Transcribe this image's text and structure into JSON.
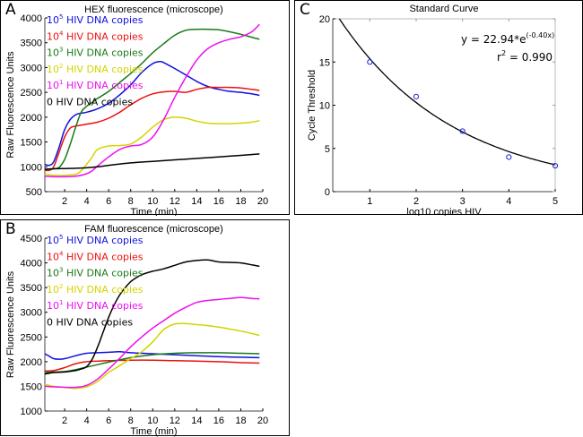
{
  "chart_data": [
    {
      "id": "A",
      "panel_label": "A",
      "type": "line",
      "title": "HEX fluorescence (microscope)",
      "xlabel": "Time (min)",
      "ylabel": "Raw Fluorescence Units",
      "xlim": [
        0.2,
        20
      ],
      "ylim": [
        500,
        4000
      ],
      "xticks": [
        2,
        4,
        6,
        8,
        10,
        12,
        14,
        16,
        18,
        20
      ],
      "yticks": [
        500,
        1000,
        1500,
        2000,
        2500,
        3000,
        3500,
        4000
      ],
      "legend_position": "top-left",
      "grid": false,
      "series": [
        {
          "name": "10^5 HIV DNA copies",
          "label_base": "10",
          "label_exp": "5",
          "label_rest": " HIV DNA copies",
          "color": "#1010e0",
          "x": [
            0.2,
            0.6,
            1,
            1.5,
            2,
            2.5,
            3,
            3.5,
            4,
            5,
            6,
            7,
            8,
            9,
            10,
            10.6,
            11,
            12,
            13,
            14,
            15,
            16,
            17,
            18,
            19,
            19.7
          ],
          "y": [
            1050,
            1030,
            1100,
            1400,
            1750,
            1950,
            2050,
            2080,
            2100,
            2170,
            2280,
            2450,
            2650,
            2900,
            3080,
            3120,
            3100,
            2980,
            2850,
            2720,
            2620,
            2560,
            2520,
            2500,
            2470,
            2440
          ]
        },
        {
          "name": "10^4 HIV DNA copies",
          "label_base": "10",
          "label_exp": "4",
          "label_rest": " HIV DNA copies",
          "color": "#ee1010",
          "x": [
            0.2,
            0.6,
            1,
            1.5,
            2,
            2.5,
            3,
            3.5,
            4,
            5,
            6,
            7,
            8,
            9,
            10,
            11,
            12,
            13,
            14,
            15,
            16,
            17,
            18,
            19,
            19.7
          ],
          "y": [
            930,
            930,
            1000,
            1300,
            1600,
            1780,
            1820,
            1840,
            1860,
            1900,
            1980,
            2100,
            2250,
            2380,
            2470,
            2510,
            2520,
            2500,
            2560,
            2600,
            2600,
            2600,
            2590,
            2560,
            2540
          ]
        },
        {
          "name": "10^3 HIV DNA copies",
          "label_base": "10",
          "label_exp": "3",
          "label_rest": " HIV DNA copies",
          "color": "#1a7a1a",
          "x": [
            0.2,
            0.6,
            1,
            1.5,
            2,
            2.5,
            3,
            3.5,
            4,
            4.5,
            5,
            6,
            7,
            8,
            9,
            10,
            11,
            12,
            13,
            14,
            15,
            16,
            17,
            18,
            19,
            19.7
          ],
          "y": [
            960,
            950,
            960,
            990,
            1150,
            1450,
            1800,
            2100,
            2220,
            2300,
            2380,
            2520,
            2700,
            2880,
            3080,
            3300,
            3480,
            3650,
            3750,
            3770,
            3770,
            3760,
            3720,
            3670,
            3610,
            3570
          ]
        },
        {
          "name": "10^2 HIV DNA copies",
          "label_base": "10",
          "label_exp": "2",
          "label_rest": " HIV DNA copies",
          "color": "#d4d400",
          "x": [
            0.2,
            1,
            2,
            3,
            3.5,
            4,
            4.5,
            5,
            6,
            7,
            8,
            9,
            10,
            11,
            12,
            13,
            14,
            15,
            16,
            17,
            18,
            19,
            19.7
          ],
          "y": [
            850,
            830,
            830,
            850,
            920,
            1050,
            1200,
            1350,
            1420,
            1430,
            1460,
            1600,
            1800,
            1950,
            2000,
            1980,
            1920,
            1880,
            1870,
            1870,
            1880,
            1900,
            1930
          ]
        },
        {
          "name": "10^1 HIV DNA copies",
          "label_base": "10",
          "label_exp": "1",
          "label_rest": " HIV DNA copies",
          "color": "#ee10ee",
          "x": [
            0.2,
            1,
            2,
            3,
            4,
            4.5,
            5,
            6,
            7,
            8,
            9,
            10,
            11,
            12,
            13,
            14,
            15,
            16,
            17,
            18,
            19,
            19.7
          ],
          "y": [
            810,
            800,
            800,
            810,
            860,
            920,
            1020,
            1200,
            1350,
            1420,
            1450,
            1600,
            1950,
            2400,
            2800,
            3150,
            3380,
            3500,
            3570,
            3620,
            3720,
            3870
          ]
        },
        {
          "name": "0 HIV DNA copies",
          "label_base": "0",
          "label_exp": "",
          "label_rest": " HIV DNA copies",
          "color": "#000000",
          "x": [
            0.2,
            1,
            2,
            3,
            4,
            5,
            6,
            8,
            10,
            12,
            14,
            16,
            18,
            19.7
          ],
          "y": [
            950,
            960,
            965,
            970,
            980,
            1000,
            1030,
            1080,
            1110,
            1140,
            1170,
            1200,
            1230,
            1260
          ]
        }
      ]
    },
    {
      "id": "B",
      "panel_label": "B",
      "type": "line",
      "title": "FAM fluorescence (microscope)",
      "xlabel": "Time (min)",
      "ylabel": "Raw Fluorescence Units",
      "xlim": [
        0.2,
        20
      ],
      "ylim": [
        1000,
        4500
      ],
      "xticks": [
        2,
        4,
        6,
        8,
        10,
        12,
        14,
        16,
        18,
        20
      ],
      "yticks": [
        1000,
        1500,
        2000,
        2500,
        3000,
        3500,
        4000,
        4500
      ],
      "legend_position": "top-left",
      "grid": false,
      "series": [
        {
          "name": "10^5 HIV DNA copies",
          "label_base": "10",
          "label_exp": "5",
          "label_rest": " HIV DNA copies",
          "color": "#1010e0",
          "x": [
            0.2,
            0.6,
            1,
            1.5,
            2,
            3,
            4,
            5,
            6,
            7,
            8,
            10,
            12,
            14,
            16,
            18,
            19.7
          ],
          "y": [
            2160,
            2110,
            2060,
            2050,
            2060,
            2120,
            2170,
            2180,
            2190,
            2200,
            2180,
            2160,
            2140,
            2120,
            2100,
            2090,
            2080
          ]
        },
        {
          "name": "10^4 HIV DNA copies",
          "label_base": "10",
          "label_exp": "4",
          "label_rest": " HIV DNA copies",
          "color": "#ee1010",
          "x": [
            0.2,
            1,
            2,
            3,
            4,
            5,
            6,
            8,
            10,
            12,
            14,
            16,
            18,
            19.7
          ],
          "y": [
            1810,
            1820,
            1880,
            1960,
            2000,
            2010,
            2020,
            2030,
            2030,
            2020,
            2010,
            2000,
            1980,
            1970
          ]
        },
        {
          "name": "10^3 HIV DNA copies",
          "label_base": "10",
          "label_exp": "3",
          "label_rest": " HIV DNA copies",
          "color": "#1a7a1a",
          "x": [
            0.2,
            1,
            2,
            3,
            4,
            5,
            6,
            8,
            10,
            12,
            14,
            16,
            18,
            19.7
          ],
          "y": [
            1780,
            1790,
            1800,
            1840,
            1890,
            1940,
            1990,
            2080,
            2140,
            2170,
            2180,
            2180,
            2170,
            2160
          ]
        },
        {
          "name": "10^2 HIV DNA copies",
          "label_base": "10",
          "label_exp": "2",
          "label_rest": " HIV DNA copies",
          "color": "#d4d400",
          "x": [
            0.2,
            1,
            2,
            3,
            4,
            5,
            6,
            7,
            8,
            9,
            10,
            11,
            12,
            13,
            14,
            15,
            16,
            17,
            18,
            19,
            19.7
          ],
          "y": [
            1540,
            1500,
            1480,
            1460,
            1490,
            1600,
            1780,
            1920,
            2060,
            2200,
            2400,
            2650,
            2760,
            2770,
            2750,
            2730,
            2700,
            2660,
            2620,
            2570,
            2530
          ]
        },
        {
          "name": "10^1 HIV DNA copies",
          "label_base": "10",
          "label_exp": "1",
          "label_rest": " HIV DNA copies",
          "color": "#ee10ee",
          "x": [
            0.2,
            1,
            2,
            3,
            4,
            5,
            6,
            7,
            8,
            9,
            10,
            11,
            12,
            13,
            14,
            15,
            16,
            17,
            18,
            19,
            19.7
          ],
          "y": [
            1500,
            1490,
            1480,
            1480,
            1520,
            1650,
            1850,
            2070,
            2300,
            2500,
            2680,
            2830,
            2980,
            3100,
            3200,
            3240,
            3260,
            3280,
            3300,
            3280,
            3270
          ]
        },
        {
          "name": "0 HIV DNA copies",
          "label_base": "0",
          "label_exp": "",
          "label_rest": " HIV DNA copies",
          "color": "#000000",
          "x": [
            0.2,
            1,
            2,
            3,
            3.5,
            4,
            4.5,
            5,
            5.5,
            6,
            6.5,
            7,
            7.5,
            8,
            8.5,
            9,
            9.5,
            10,
            11,
            12,
            13,
            14,
            15,
            16,
            17,
            18,
            19,
            19.7
          ],
          "y": [
            1750,
            1780,
            1790,
            1820,
            1850,
            1900,
            2050,
            2300,
            2600,
            2900,
            3150,
            3350,
            3500,
            3620,
            3700,
            3760,
            3800,
            3830,
            3880,
            3950,
            4020,
            4050,
            4060,
            4020,
            4010,
            4000,
            3960,
            3930
          ]
        }
      ]
    },
    {
      "id": "C",
      "panel_label": "C",
      "type": "scatter",
      "title": "Standard Curve",
      "xlabel": "log10 copies HIV",
      "ylabel": "Cycle Threshold",
      "xlim": [
        0.2,
        5
      ],
      "ylim": [
        0,
        20
      ],
      "xticks": [
        1,
        2,
        3,
        4,
        5
      ],
      "yticks": [
        0,
        5,
        10,
        15,
        20
      ],
      "grid": false,
      "points": {
        "x": [
          1,
          2,
          3,
          4,
          5
        ],
        "y": [
          15,
          11,
          7,
          4,
          3
        ],
        "color": "#2020dd",
        "marker": "circle"
      },
      "fit": {
        "type": "exponential",
        "a": 22.94,
        "b": -0.4,
        "color": "#000000"
      },
      "annotation": {
        "equation_prefix": "y = 22.94*e",
        "equation_exponent": "(-0.40x)",
        "r2_prefix": "r",
        "r2_exponent": "2",
        "r2_value": " = 0.990"
      }
    }
  ]
}
